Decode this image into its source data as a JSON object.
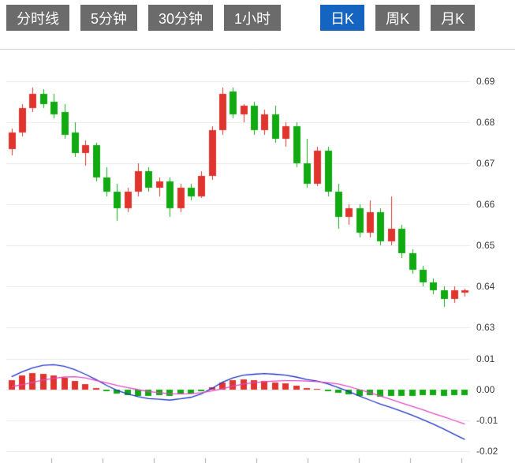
{
  "toolbar": {
    "buttons": [
      {
        "label": "分时线",
        "active": false
      },
      {
        "label": "5分钟",
        "active": false
      },
      {
        "label": "30分钟",
        "active": false
      },
      {
        "label": "1小时",
        "active": false
      },
      {
        "label": "日K",
        "active": true
      },
      {
        "label": "周K",
        "active": false
      },
      {
        "label": "月K",
        "active": false
      }
    ],
    "active_bg": "#1565c0",
    "inactive_bg": "#6b6b6b",
    "text_color": "#ffffff"
  },
  "chart_data": {
    "type": "candlestick",
    "indicator": "macd",
    "title": "",
    "price_axis": {
      "labels": [
        "0.69",
        "0.68",
        "0.67",
        "0.66",
        "0.65",
        "0.64",
        "0.63"
      ],
      "values": [
        0.69,
        0.68,
        0.67,
        0.66,
        0.65,
        0.64,
        0.63
      ],
      "ylim": [
        0.6275,
        0.698
      ],
      "grid": true,
      "position": "right"
    },
    "macd_axis": {
      "labels": [
        "0.01",
        "0.00",
        "-0.01",
        "-0.02"
      ],
      "values": [
        0.01,
        0.0,
        -0.01,
        -0.02
      ],
      "grid": true,
      "position": "right"
    },
    "colors": {
      "up": "#e0342f",
      "down": "#12aa12",
      "dif_line": "#2133c4",
      "dea_line": "#de49c4",
      "grid": "#e9e9e9",
      "border": "#cccccc",
      "label": "#3d3d3d"
    },
    "candles_format": [
      "open",
      "high",
      "low",
      "close"
    ],
    "candles": [
      [
        0.6735,
        0.6785,
        0.672,
        0.6775
      ],
      [
        0.6775,
        0.6845,
        0.6765,
        0.6835
      ],
      [
        0.6835,
        0.6885,
        0.6825,
        0.687
      ],
      [
        0.687,
        0.688,
        0.6835,
        0.6845
      ],
      [
        0.685,
        0.687,
        0.681,
        0.682
      ],
      [
        0.6825,
        0.6845,
        0.676,
        0.677
      ],
      [
        0.6775,
        0.68,
        0.6715,
        0.6725
      ],
      [
        0.6725,
        0.6755,
        0.6695,
        0.6745
      ],
      [
        0.6745,
        0.675,
        0.6655,
        0.6665
      ],
      [
        0.6665,
        0.669,
        0.662,
        0.663
      ],
      [
        0.663,
        0.665,
        0.656,
        0.659
      ],
      [
        0.659,
        0.664,
        0.658,
        0.663
      ],
      [
        0.663,
        0.67,
        0.662,
        0.668
      ],
      [
        0.668,
        0.669,
        0.663,
        0.664
      ],
      [
        0.664,
        0.6665,
        0.662,
        0.6655
      ],
      [
        0.6655,
        0.6665,
        0.657,
        0.659
      ],
      [
        0.659,
        0.665,
        0.658,
        0.664
      ],
      [
        0.664,
        0.665,
        0.661,
        0.662
      ],
      [
        0.662,
        0.668,
        0.6615,
        0.667
      ],
      [
        0.667,
        0.679,
        0.666,
        0.678
      ],
      [
        0.678,
        0.6885,
        0.677,
        0.687
      ],
      [
        0.6875,
        0.6885,
        0.681,
        0.682
      ],
      [
        0.682,
        0.6845,
        0.68,
        0.684
      ],
      [
        0.684,
        0.685,
        0.677,
        0.678
      ],
      [
        0.678,
        0.683,
        0.677,
        0.682
      ],
      [
        0.682,
        0.684,
        0.675,
        0.676
      ],
      [
        0.676,
        0.68,
        0.674,
        0.679
      ],
      [
        0.679,
        0.68,
        0.669,
        0.67
      ],
      [
        0.67,
        0.676,
        0.664,
        0.665
      ],
      [
        0.665,
        0.674,
        0.6645,
        0.673
      ],
      [
        0.673,
        0.674,
        0.662,
        0.663
      ],
      [
        0.663,
        0.665,
        0.654,
        0.657
      ],
      [
        0.657,
        0.66,
        0.655,
        0.659
      ],
      [
        0.659,
        0.66,
        0.652,
        0.653
      ],
      [
        0.653,
        0.661,
        0.652,
        0.658
      ],
      [
        0.658,
        0.659,
        0.65,
        0.651
      ],
      [
        0.651,
        0.662,
        0.65,
        0.654
      ],
      [
        0.654,
        0.655,
        0.647,
        0.648
      ],
      [
        0.648,
        0.649,
        0.643,
        0.644
      ],
      [
        0.644,
        0.645,
        0.64,
        0.641
      ],
      [
        0.641,
        0.642,
        0.638,
        0.639
      ],
      [
        0.639,
        0.64,
        0.635,
        0.637
      ],
      [
        0.637,
        0.64,
        0.636,
        0.639
      ],
      [
        0.6385,
        0.6395,
        0.6375,
        0.639
      ]
    ],
    "macd": {
      "hist": [
        0.0032,
        0.0046,
        0.0053,
        0.0051,
        0.0046,
        0.0038,
        0.0028,
        0.0017,
        0.0006,
        -0.0006,
        -0.0014,
        -0.0019,
        -0.002,
        -0.0021,
        -0.0019,
        -0.0021,
        -0.0016,
        -0.0012,
        -0.0005,
        0.0008,
        0.0022,
        0.003,
        0.0033,
        0.003,
        0.0028,
        0.0024,
        0.002,
        0.0012,
        0.0005,
        0.0002,
        -0.0004,
        -0.0011,
        -0.0015,
        -0.002,
        -0.0019,
        -0.0022,
        -0.002,
        -0.0021,
        -0.002,
        -0.0019,
        -0.0019,
        -0.002,
        -0.0018,
        -0.0017
      ],
      "dif": [
        0.0042,
        0.0058,
        0.0071,
        0.0079,
        0.0081,
        0.0076,
        0.0065,
        0.005,
        0.0033,
        0.0014,
        -0.0002,
        -0.0014,
        -0.0023,
        -0.0029,
        -0.0031,
        -0.0034,
        -0.003,
        -0.0025,
        -0.0014,
        0.0004,
        0.0024,
        0.0038,
        0.0047,
        0.005,
        0.0052,
        0.005,
        0.0047,
        0.0041,
        0.0033,
        0.0028,
        0.0019,
        0.0007,
        -0.0006,
        -0.0021,
        -0.0034,
        -0.0047,
        -0.0058,
        -0.007,
        -0.0083,
        -0.0097,
        -0.0112,
        -0.0128,
        -0.0145,
        -0.0162
      ],
      "dea": [
        0.001,
        0.0016,
        0.0024,
        0.0031,
        0.0037,
        0.0041,
        0.0042,
        0.0038,
        0.003,
        0.0022,
        0.0014,
        0.0007,
        0.0,
        -0.0006,
        -0.001,
        -0.0013,
        -0.0014,
        -0.0013,
        -0.001,
        -0.0004,
        0.0003,
        0.0011,
        0.0018,
        0.0023,
        0.0026,
        0.0028,
        0.0029,
        0.0029,
        0.0028,
        0.0026,
        0.0023,
        0.0018,
        0.001,
        0.0,
        -0.001,
        -0.0021,
        -0.0032,
        -0.0043,
        -0.0054,
        -0.0065,
        -0.0077,
        -0.0088,
        -0.01,
        -0.0112
      ]
    }
  }
}
